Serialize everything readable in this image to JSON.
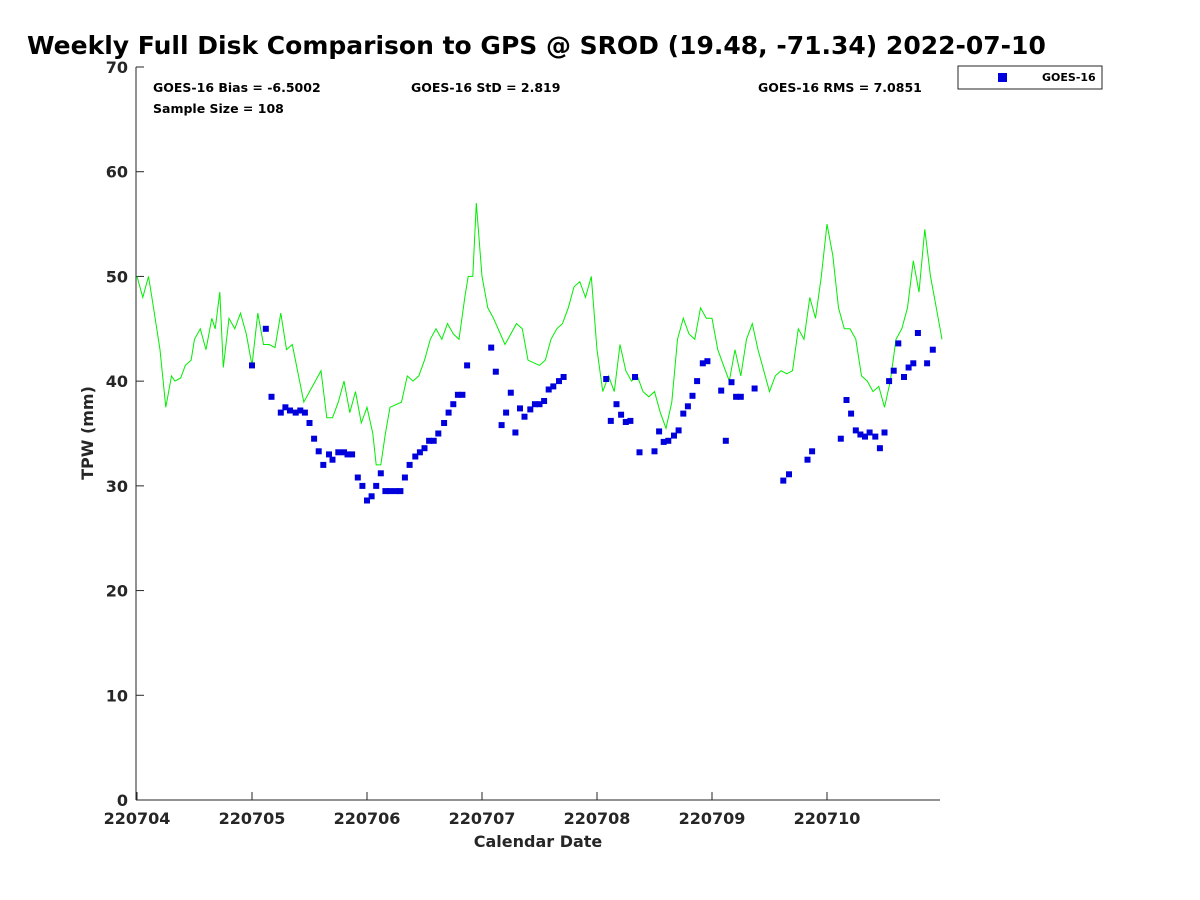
{
  "chart_data": {
    "type": "scatter",
    "title": "Weekly Full Disk Comparison to GPS @ SROD (19.48, -71.34) 2022-07-10",
    "xlabel": "Calendar Date",
    "ylabel": "TPW (mm)",
    "ylim": [
      0,
      70
    ],
    "xlim": [
      0,
      7
    ],
    "y_ticks": [
      0,
      10,
      20,
      30,
      40,
      50,
      60,
      70
    ],
    "x_ticks": [
      {
        "value": 0,
        "label": "220704"
      },
      {
        "value": 1,
        "label": "220705"
      },
      {
        "value": 2,
        "label": "220706"
      },
      {
        "value": 3,
        "label": "220707"
      },
      {
        "value": 4,
        "label": "220708"
      },
      {
        "value": 5,
        "label": "220709"
      },
      {
        "value": 6,
        "label": "220710"
      }
    ],
    "stats": {
      "bias": "GOES-16 Bias = -6.5002",
      "std": "GOES-16 StD = 2.819",
      "rms": "GOES-16 RMS = 7.0851",
      "sample": "Sample Size = 108"
    },
    "colors": {
      "goes": "#0000dd",
      "gps": "#00ee00"
    },
    "legend": [
      {
        "name": "GOES-16",
        "marker": "square"
      }
    ],
    "series": [
      {
        "name": "GPS",
        "style": "line",
        "x": [
          0,
          0.05,
          0.1,
          0.13,
          0.2,
          0.25,
          0.3,
          0.33,
          0.38,
          0.42,
          0.47,
          0.5,
          0.55,
          0.6,
          0.65,
          0.68,
          0.72,
          0.75,
          0.8,
          0.85,
          0.9,
          0.95,
          1.0,
          1.05,
          1.1,
          1.15,
          1.2,
          1.25,
          1.3,
          1.35,
          1.45,
          1.55,
          1.6,
          1.65,
          1.7,
          1.75,
          1.8,
          1.85,
          1.9,
          1.95,
          2.0,
          2.05,
          2.08,
          2.12,
          2.16,
          2.2,
          2.3,
          2.35,
          2.4,
          2.45,
          2.5,
          2.55,
          2.6,
          2.65,
          2.7,
          2.75,
          2.8,
          2.85,
          2.88,
          2.92,
          2.95,
          3.0,
          3.05,
          3.1,
          3.2,
          3.3,
          3.35,
          3.4,
          3.5,
          3.55,
          3.6,
          3.65,
          3.7,
          3.75,
          3.8,
          3.85,
          3.9,
          3.95,
          4.0,
          4.05,
          4.1,
          4.15,
          4.2,
          4.25,
          4.3,
          4.35,
          4.4,
          4.45,
          4.5,
          4.55,
          4.6,
          4.65,
          4.7,
          4.75,
          4.8,
          4.85,
          4.9,
          4.95,
          5.0,
          5.05,
          5.1,
          5.15,
          5.2,
          5.25,
          5.3,
          5.35,
          5.4,
          5.45,
          5.5,
          5.55,
          5.6,
          5.65,
          5.7,
          5.75,
          5.8,
          5.85,
          5.9,
          5.95,
          6.0,
          6.05,
          6.1,
          6.15,
          6.2,
          6.25,
          6.3,
          6.35,
          6.4,
          6.45,
          6.5,
          6.55,
          6.6,
          6.65,
          6.7,
          6.75,
          6.8,
          6.85,
          6.9,
          6.95,
          7.0
        ],
        "values": [
          50,
          48,
          50,
          48,
          43,
          37.5,
          40.5,
          40,
          40.3,
          41.5,
          42,
          44,
          45,
          43,
          46,
          45,
          48.5,
          41.3,
          46,
          45,
          46.5,
          44.5,
          41.5,
          46.5,
          43.5,
          43.5,
          43.2,
          46.5,
          43,
          43.5,
          38,
          40,
          41,
          36.5,
          36.5,
          38,
          40,
          37,
          39,
          36,
          37.5,
          35,
          32,
          32,
          35,
          37.5,
          38,
          40.5,
          40,
          40.5,
          42,
          44,
          45,
          44,
          45.5,
          44.5,
          44,
          48,
          50,
          50,
          57,
          50,
          47,
          46,
          43.5,
          45.5,
          45,
          42,
          41.5,
          42,
          44,
          45,
          45.5,
          47,
          49,
          49.5,
          48,
          50,
          43,
          39,
          40.5,
          39,
          43.5,
          41,
          40,
          40.5,
          39,
          38.5,
          39,
          37,
          35.5,
          38,
          44,
          46,
          44.5,
          44,
          47,
          46,
          46,
          43,
          41.5,
          40,
          43,
          40.5,
          44,
          45.5,
          43,
          41,
          39,
          40.5,
          41,
          40.7,
          41,
          45,
          44,
          48,
          46,
          50,
          55,
          52,
          47,
          45,
          45,
          44,
          40.5,
          40,
          39,
          39.5,
          37.5,
          40,
          44,
          45,
          47,
          51.5,
          48.5,
          54.5,
          50,
          47,
          44
        ]
      },
      {
        "name": "GOES-16",
        "style": "markers",
        "x": [
          1.0,
          1.12,
          1.17,
          1.25,
          1.29,
          1.33,
          1.38,
          1.42,
          1.46,
          1.5,
          1.54,
          1.58,
          1.62,
          1.67,
          1.7,
          1.75,
          1.8,
          1.83,
          1.87,
          1.92,
          1.96,
          2.0,
          2.04,
          2.08,
          2.12,
          2.16,
          2.2,
          2.25,
          2.29,
          2.33,
          2.37,
          2.42,
          2.46,
          2.5,
          2.54,
          2.58,
          2.62,
          2.67,
          2.71,
          2.75,
          2.79,
          2.83,
          2.87,
          3.08,
          3.12,
          3.17,
          3.21,
          3.25,
          3.29,
          3.33,
          3.37,
          3.42,
          3.46,
          3.5,
          3.54,
          3.58,
          3.62,
          3.67,
          3.71,
          4.08,
          4.12,
          4.17,
          4.21,
          4.25,
          4.29,
          4.33,
          4.37,
          4.5,
          4.54,
          4.58,
          4.62,
          4.67,
          4.71,
          4.75,
          4.79,
          4.83,
          4.87,
          4.92,
          4.96,
          5.08,
          5.12,
          5.17,
          5.21,
          5.25,
          5.37,
          5.62,
          5.67,
          5.83,
          5.87,
          6.12,
          6.17,
          6.21,
          6.25,
          6.29,
          6.33,
          6.37,
          6.42,
          6.46,
          6.5,
          6.54,
          6.58,
          6.62,
          6.67,
          6.71,
          6.75,
          6.79,
          6.87,
          6.92
        ],
        "values": [
          41.5,
          45,
          38.5,
          37,
          37.5,
          37.2,
          37,
          37.2,
          37,
          36,
          34.5,
          33.3,
          32,
          33,
          32.5,
          33.2,
          33.2,
          33,
          33,
          30.8,
          30,
          28.6,
          29,
          30,
          31.2,
          29.5,
          29.5,
          29.5,
          29.5,
          30.8,
          32,
          32.8,
          33.2,
          33.6,
          34.3,
          34.3,
          35,
          36,
          37,
          37.8,
          38.7,
          38.7,
          41.5,
          43.2,
          40.9,
          35.8,
          37,
          38.9,
          35.1,
          37.4,
          36.6,
          37.3,
          37.8,
          37.8,
          38.1,
          39.2,
          39.5,
          40,
          40.4,
          40.2,
          36.2,
          37.8,
          36.8,
          36.1,
          36.2,
          40.4,
          33.2,
          33.3,
          35.2,
          34.2,
          34.3,
          34.8,
          35.3,
          36.9,
          37.6,
          38.6,
          40,
          41.7,
          41.9,
          39.1,
          34.3,
          39.9,
          38.5,
          38.5,
          39.3,
          30.5,
          31.1,
          32.5,
          33.3,
          34.5,
          38.2,
          36.9,
          35.3,
          34.9,
          34.7,
          35.1,
          34.7,
          33.6,
          35.1,
          40,
          41,
          43.6,
          40.4,
          41.3,
          41.7,
          44.6,
          41.7,
          43
        ]
      }
    ]
  }
}
